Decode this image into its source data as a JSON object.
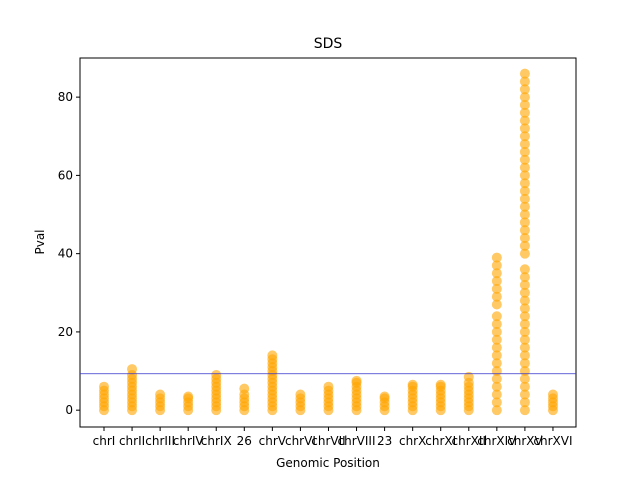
{
  "chart_data": {
    "type": "strip",
    "title": "SDS",
    "x_label": "Genomic Position",
    "y_label": "Pval",
    "categories": [
      "chrI",
      "chrII",
      "chrIII",
      "chrIV",
      "chrIX",
      "26",
      "chrV",
      "chrVI",
      "chrVII",
      "chrVIII",
      "23",
      "chrX",
      "chrXI",
      "chrXII",
      "chrXIV",
      "chrXV",
      "chrXVI"
    ],
    "values": [
      [
        0,
        1,
        2,
        3,
        4,
        5,
        6
      ],
      [
        0,
        1,
        2,
        3,
        4,
        5,
        6,
        7,
        8,
        9,
        10.5
      ],
      [
        0,
        1,
        2,
        3,
        4
      ],
      [
        0,
        1,
        2,
        3,
        3.5
      ],
      [
        0,
        1,
        2,
        3,
        4,
        5,
        6,
        7,
        8,
        9
      ],
      [
        0,
        1,
        2,
        3,
        4,
        5.5
      ],
      [
        0,
        1,
        2,
        3,
        4,
        5,
        6,
        7,
        8,
        9,
        10,
        11,
        12,
        13,
        14
      ],
      [
        0,
        1,
        2,
        3,
        4
      ],
      [
        0,
        1,
        2,
        3,
        4,
        5,
        6
      ],
      [
        0,
        1,
        2,
        3,
        4,
        5,
        6,
        7,
        7.5
      ],
      [
        0,
        1,
        2,
        3,
        3.5
      ],
      [
        0,
        1,
        2,
        3,
        4,
        5,
        6,
        6.5
      ],
      [
        0,
        1,
        2,
        3,
        4,
        5,
        6,
        6.5
      ],
      [
        0,
        1,
        2,
        3,
        4,
        5,
        6,
        7,
        8.5
      ],
      [
        0,
        2,
        4,
        6,
        8,
        10,
        12,
        14,
        16,
        18,
        20,
        22,
        24,
        27,
        29,
        31,
        33,
        35,
        37,
        39
      ],
      [
        0,
        2,
        4,
        6,
        8,
        10,
        12,
        14,
        16,
        18,
        20,
        22,
        24,
        26,
        28,
        30,
        32,
        34,
        36,
        40,
        42,
        44,
        46,
        48,
        50,
        52,
        54,
        56,
        58,
        60,
        62,
        64,
        66,
        68,
        70,
        72,
        74,
        76,
        78,
        80,
        82,
        84,
        86
      ],
      [
        0,
        1,
        2,
        3,
        4
      ]
    ],
    "color": "#ffa500",
    "threshold": 9.3,
    "threshold_color": "#3333cc",
    "ylim": [
      -4.3,
      90
    ],
    "yticks": [
      0,
      20,
      40,
      60,
      80
    ]
  }
}
